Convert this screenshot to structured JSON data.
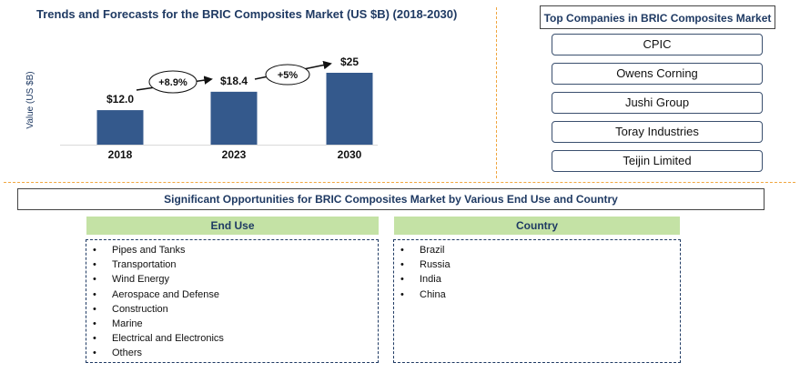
{
  "chart_data": {
    "type": "bar",
    "title": "Trends and Forecasts for the BRIC Composites Market (US $B) (2018-2030)",
    "ylabel": "Value (US $B)",
    "categories": [
      "2018",
      "2023",
      "2030"
    ],
    "values": [
      12.0,
      18.4,
      25
    ],
    "value_labels": [
      "$12.0",
      "$18.4",
      "$25"
    ],
    "growth_labels": [
      "+8.9%",
      "+5%"
    ],
    "ylim": [
      0,
      30
    ],
    "bar_color": "#34598c"
  },
  "top_companies": {
    "heading": "Top Companies in BRIC Composites Market",
    "items": [
      "CPIC",
      "Owens Corning",
      "Jushi Group",
      "Toray Industries",
      "Teijin Limited"
    ]
  },
  "opportunities": {
    "heading": "Significant Opportunities for BRIC Composites Market by Various End Use and Country",
    "end_use": {
      "heading": "End Use",
      "items": [
        "Pipes and Tanks",
        "Transportation",
        "Wind Energy",
        "Aerospace and Defense",
        "Construction",
        "Marine",
        "Electrical and Electronics",
        "Others"
      ]
    },
    "country": {
      "heading": "Country",
      "items": [
        "Brazil",
        "Russia",
        "India",
        "China"
      ]
    }
  },
  "colors": {
    "accent_divider": "#f0a640",
    "header_green": "#c4e2a5",
    "navy": "#1f3a63"
  }
}
